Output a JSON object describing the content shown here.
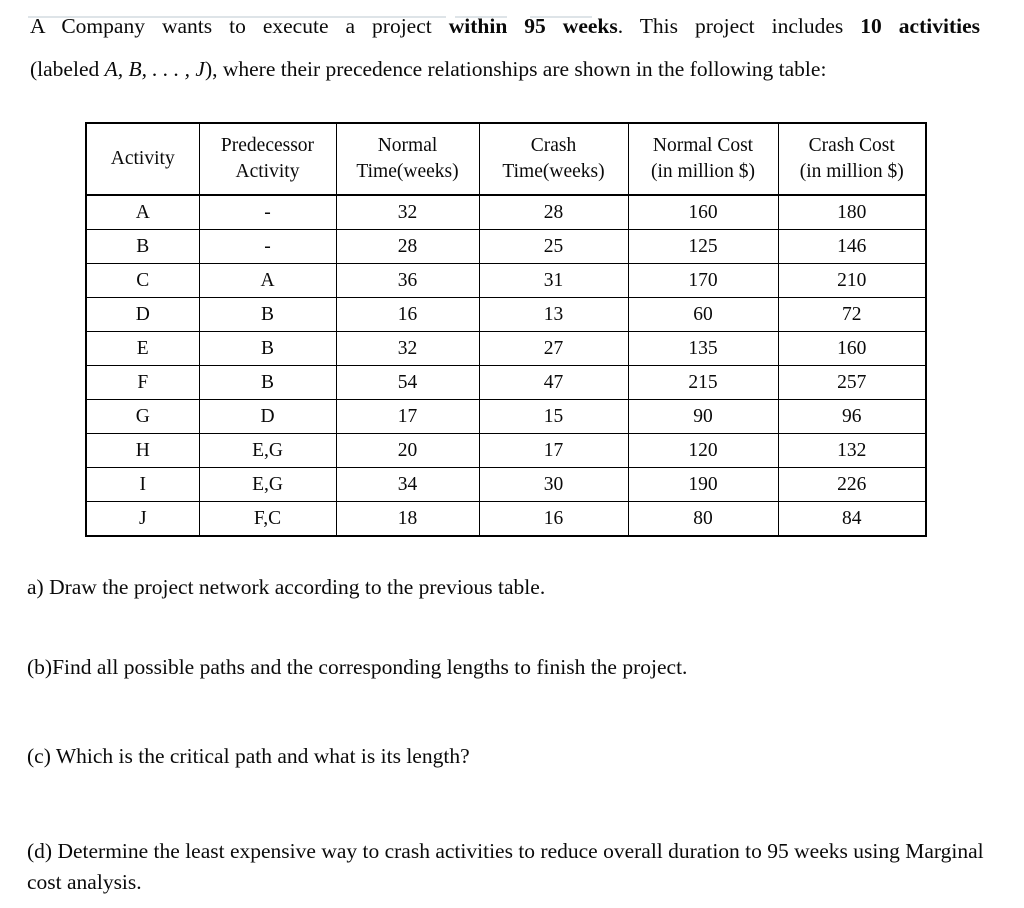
{
  "intro": {
    "line1": {
      "t1": "A Company wants to execute a project ",
      "b1": "within 95 weeks",
      "t2": ". This project includes ",
      "b2": "10 activities"
    },
    "line2": {
      "t1": "(labeled ",
      "i1": "A, B, . . . , J",
      "t2": "), where their precedence relationships are shown in the following table:"
    }
  },
  "table": {
    "headers": [
      "Activity",
      "Predecessor\nActivity",
      "Normal\nTime(weeks)",
      "Crash\nTime(weeks)",
      "Normal Cost\n(in million $)",
      "Crash Cost\n(in million $)"
    ],
    "rows": [
      {
        "activity": "A",
        "predecessor": "-",
        "normal_time": "32",
        "crash_time": "28",
        "normal_cost": "160",
        "crash_cost": "180"
      },
      {
        "activity": "B",
        "predecessor": "-",
        "normal_time": "28",
        "crash_time": "25",
        "normal_cost": "125",
        "crash_cost": "146"
      },
      {
        "activity": "C",
        "predecessor": "A",
        "normal_time": "36",
        "crash_time": "31",
        "normal_cost": "170",
        "crash_cost": "210"
      },
      {
        "activity": "D",
        "predecessor": "B",
        "normal_time": "16",
        "crash_time": "13",
        "normal_cost": "60",
        "crash_cost": "72"
      },
      {
        "activity": "E",
        "predecessor": "B",
        "normal_time": "32",
        "crash_time": "27",
        "normal_cost": "135",
        "crash_cost": "160"
      },
      {
        "activity": "F",
        "predecessor": "B",
        "normal_time": "54",
        "crash_time": "47",
        "normal_cost": "215",
        "crash_cost": "257"
      },
      {
        "activity": "G",
        "predecessor": "D",
        "normal_time": "17",
        "crash_time": "15",
        "normal_cost": "90",
        "crash_cost": "96"
      },
      {
        "activity": "H",
        "predecessor": "E,G",
        "normal_time": "20",
        "crash_time": "17",
        "normal_cost": "120",
        "crash_cost": "132"
      },
      {
        "activity": "I",
        "predecessor": "E,G",
        "normal_time": "34",
        "crash_time": "30",
        "normal_cost": "190",
        "crash_cost": "226"
      },
      {
        "activity": "J",
        "predecessor": "F,C",
        "normal_time": "18",
        "crash_time": "16",
        "normal_cost": "80",
        "crash_cost": "84"
      }
    ]
  },
  "questions": {
    "a": "a) Draw the project network according to the previous table.",
    "b": "(b)Find all possible paths and the corresponding lengths to finish the project.",
    "c": "(c) Which is the critical path and what is its length?",
    "d": "(d) Determine the least expensive way to crash activities to reduce overall duration to 95 weeks using Marginal cost analysis."
  }
}
